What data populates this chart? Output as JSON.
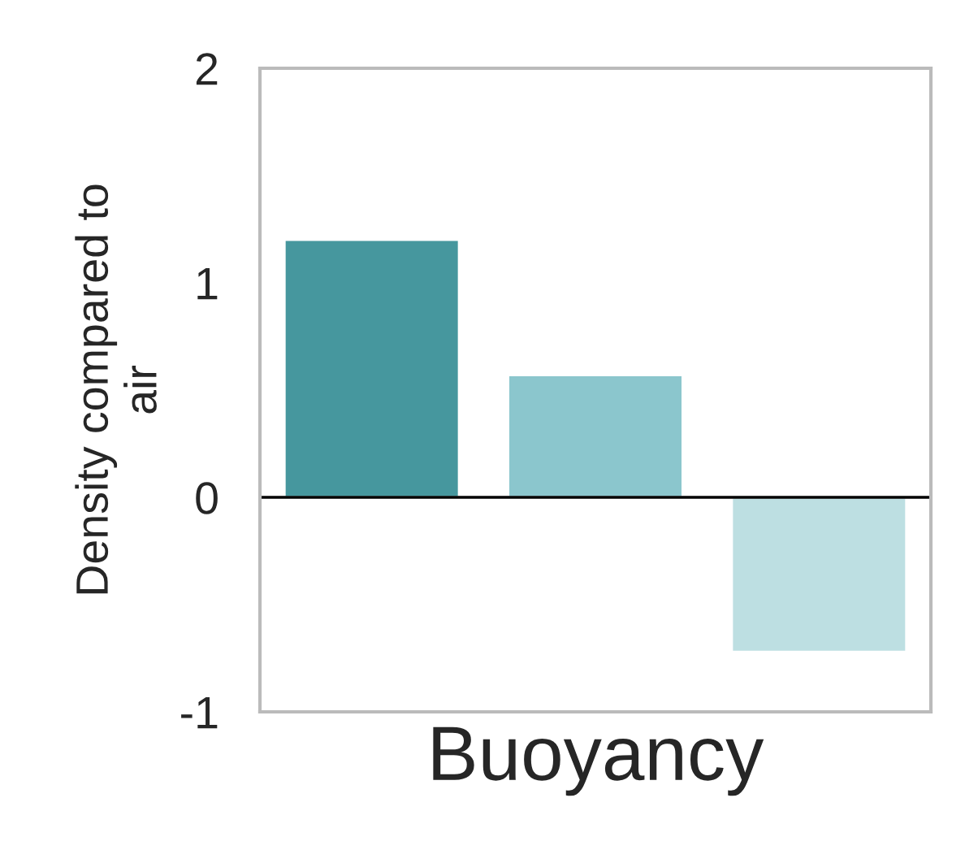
{
  "chart_data": {
    "type": "bar",
    "xlabel": "Buoyancy",
    "ylabel": "Density compared to\nair",
    "categories": [
      null,
      null,
      null
    ],
    "values": [
      1.2,
      0.57,
      -0.72
    ],
    "colors": [
      "#46979e",
      "#8bc6cd",
      "#bddfe2"
    ],
    "ylim": [
      -1,
      2
    ],
    "yticks": [
      -1,
      0,
      1,
      2
    ],
    "ref_lines": [
      {
        "axis": "y",
        "value": 0,
        "color": "#000000"
      }
    ],
    "grid": false
  }
}
